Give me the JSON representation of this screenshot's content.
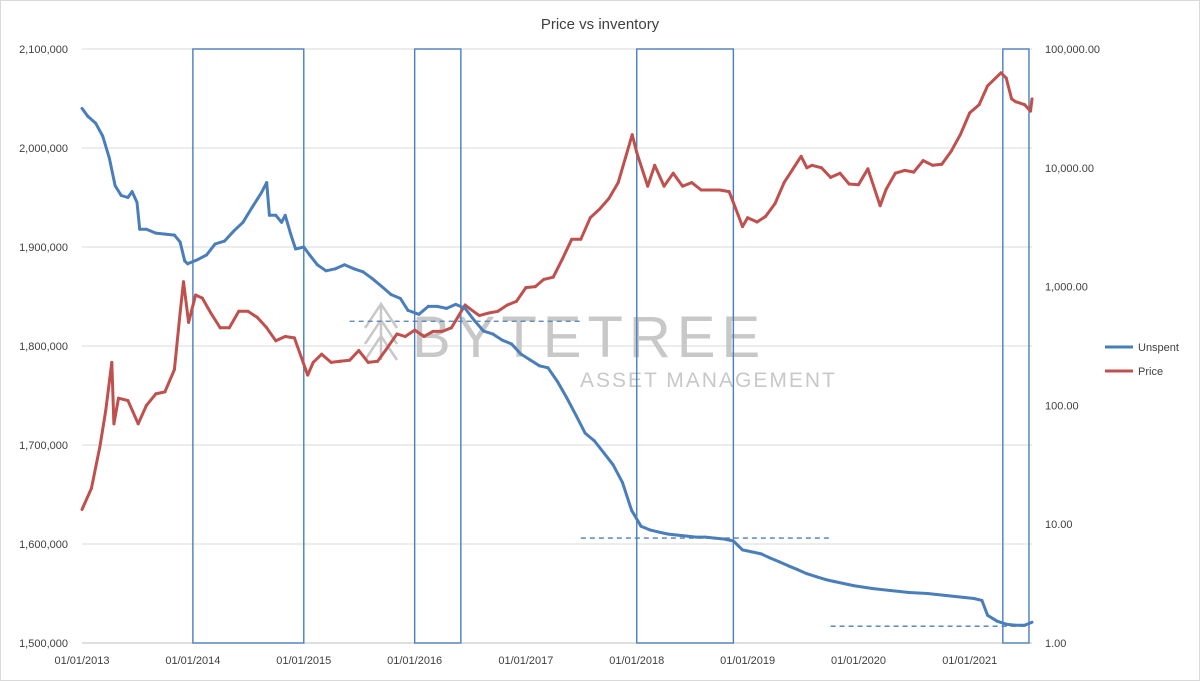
{
  "chart_data": {
    "type": "line",
    "title": "Price vs inventory",
    "watermark": {
      "line1": "BYTETREE",
      "line2": "ASSET MANAGEMENT"
    },
    "grid": true,
    "legend_position": "right",
    "x_axis": {
      "ticks": [
        "01/01/2013",
        "01/01/2014",
        "01/01/2015",
        "01/01/2016",
        "01/01/2017",
        "01/01/2018",
        "01/01/2019",
        "01/01/2020",
        "01/01/2021"
      ],
      "range": [
        "2013-01-01",
        "2021-07-25"
      ]
    },
    "y_left": {
      "ticks": [
        "1,500,000",
        "1,600,000",
        "1,700,000",
        "1,800,000",
        "1,900,000",
        "2,000,000",
        "2,100,000"
      ],
      "range": [
        1500000,
        2100000
      ]
    },
    "y_right": {
      "scale": "log",
      "ticks": [
        "1.00",
        "10.00",
        "100.00",
        "1,000.00",
        "10,000.00",
        "100,000.00"
      ],
      "range": [
        1,
        100000
      ]
    },
    "series": [
      {
        "name": "Unspent",
        "axis": "left",
        "color": "#4a7ebb",
        "points": [
          [
            "2013-01-01",
            2040000
          ],
          [
            "2013-01-20",
            2032000
          ],
          [
            "2013-02-15",
            2025000
          ],
          [
            "2013-03-10",
            2012000
          ],
          [
            "2013-04-01",
            1990000
          ],
          [
            "2013-04-20",
            1962000
          ],
          [
            "2013-05-10",
            1952000
          ],
          [
            "2013-06-01",
            1950000
          ],
          [
            "2013-06-15",
            1956000
          ],
          [
            "2013-07-01",
            1945000
          ],
          [
            "2013-07-10",
            1918000
          ],
          [
            "2013-08-01",
            1918000
          ],
          [
            "2013-09-01",
            1914000
          ],
          [
            "2013-10-01",
            1913000
          ],
          [
            "2013-11-01",
            1912000
          ],
          [
            "2013-11-20",
            1905000
          ],
          [
            "2013-12-05",
            1886000
          ],
          [
            "2013-12-15",
            1883000
          ],
          [
            "2014-01-15",
            1887000
          ],
          [
            "2014-02-15",
            1892000
          ],
          [
            "2014-03-15",
            1903000
          ],
          [
            "2014-04-15",
            1906000
          ],
          [
            "2014-05-15",
            1916000
          ],
          [
            "2014-06-15",
            1925000
          ],
          [
            "2014-07-15",
            1940000
          ],
          [
            "2014-08-15",
            1955000
          ],
          [
            "2014-09-01",
            1965000
          ],
          [
            "2014-09-10",
            1932000
          ],
          [
            "2014-10-01",
            1932000
          ],
          [
            "2014-10-20",
            1925000
          ],
          [
            "2014-11-01",
            1932000
          ],
          [
            "2014-11-20",
            1912000
          ],
          [
            "2014-12-05",
            1898000
          ],
          [
            "2015-01-01",
            1900000
          ],
          [
            "2015-01-20",
            1892000
          ],
          [
            "2015-02-15",
            1882000
          ],
          [
            "2015-03-15",
            1876000
          ],
          [
            "2015-04-15",
            1878000
          ],
          [
            "2015-05-15",
            1882000
          ],
          [
            "2015-06-15",
            1878000
          ],
          [
            "2015-07-15",
            1875000
          ],
          [
            "2015-08-15",
            1868000
          ],
          [
            "2015-09-15",
            1860000
          ],
          [
            "2015-10-15",
            1852000
          ],
          [
            "2015-11-15",
            1848000
          ],
          [
            "2015-12-10",
            1836000
          ],
          [
            "2016-01-15",
            1832000
          ],
          [
            "2016-02-15",
            1840000
          ],
          [
            "2016-03-15",
            1840000
          ],
          [
            "2016-04-15",
            1838000
          ],
          [
            "2016-05-15",
            1842000
          ],
          [
            "2016-06-15",
            1838000
          ],
          [
            "2016-07-15",
            1826000
          ],
          [
            "2016-08-15",
            1815000
          ],
          [
            "2016-09-15",
            1812000
          ],
          [
            "2016-10-15",
            1806000
          ],
          [
            "2016-11-15",
            1802000
          ],
          [
            "2016-12-15",
            1792000
          ],
          [
            "2017-01-15",
            1786000
          ],
          [
            "2017-02-15",
            1780000
          ],
          [
            "2017-03-15",
            1778000
          ],
          [
            "2017-04-15",
            1764000
          ],
          [
            "2017-05-15",
            1748000
          ],
          [
            "2017-06-15",
            1730000
          ],
          [
            "2017-07-15",
            1712000
          ],
          [
            "2017-08-15",
            1704000
          ],
          [
            "2017-09-15",
            1692000
          ],
          [
            "2017-10-15",
            1680000
          ],
          [
            "2017-11-15",
            1662000
          ],
          [
            "2017-12-15",
            1634000
          ],
          [
            "2018-01-15",
            1618000
          ],
          [
            "2018-02-15",
            1614000
          ],
          [
            "2018-03-15",
            1612000
          ],
          [
            "2018-04-15",
            1610000
          ],
          [
            "2018-05-15",
            1609000
          ],
          [
            "2018-06-15",
            1608000
          ],
          [
            "2018-07-15",
            1607000
          ],
          [
            "2018-08-15",
            1607000
          ],
          [
            "2018-09-15",
            1606000
          ],
          [
            "2018-10-15",
            1605000
          ],
          [
            "2018-11-15",
            1603000
          ],
          [
            "2018-12-15",
            1594000
          ],
          [
            "2019-01-15",
            1592000
          ],
          [
            "2019-02-15",
            1590000
          ],
          [
            "2019-03-15",
            1586000
          ],
          [
            "2019-04-15",
            1582000
          ],
          [
            "2019-05-15",
            1578000
          ],
          [
            "2019-06-15",
            1574000
          ],
          [
            "2019-07-15",
            1570000
          ],
          [
            "2019-08-15",
            1567000
          ],
          [
            "2019-09-15",
            1564000
          ],
          [
            "2019-10-15",
            1562000
          ],
          [
            "2019-11-15",
            1560000
          ],
          [
            "2019-12-15",
            1558000
          ],
          [
            "2020-02-15",
            1555000
          ],
          [
            "2020-04-15",
            1553000
          ],
          [
            "2020-06-15",
            1551000
          ],
          [
            "2020-08-15",
            1550000
          ],
          [
            "2020-10-15",
            1548000
          ],
          [
            "2020-12-15",
            1546000
          ],
          [
            "2021-01-15",
            1545000
          ],
          [
            "2021-02-10",
            1543000
          ],
          [
            "2021-03-01",
            1528000
          ],
          [
            "2021-04-01",
            1522000
          ],
          [
            "2021-05-01",
            1519000
          ],
          [
            "2021-06-01",
            1518000
          ],
          [
            "2021-07-01",
            1518000
          ],
          [
            "2021-07-25",
            1521000
          ]
        ]
      },
      {
        "name": "Price",
        "axis": "right",
        "color": "#c0504d",
        "points": [
          [
            "2013-01-01",
            13.3
          ],
          [
            "2013-02-01",
            20
          ],
          [
            "2013-03-01",
            45
          ],
          [
            "2013-03-20",
            90
          ],
          [
            "2013-04-09",
            230
          ],
          [
            "2013-04-16",
            70
          ],
          [
            "2013-05-01",
            115
          ],
          [
            "2013-06-01",
            110
          ],
          [
            "2013-07-05",
            70
          ],
          [
            "2013-08-01",
            100
          ],
          [
            "2013-09-01",
            125
          ],
          [
            "2013-10-01",
            130
          ],
          [
            "2013-11-01",
            200
          ],
          [
            "2013-11-20",
            600
          ],
          [
            "2013-12-01",
            1100
          ],
          [
            "2013-12-18",
            500
          ],
          [
            "2014-01-10",
            850
          ],
          [
            "2014-02-01",
            800
          ],
          [
            "2014-03-01",
            600
          ],
          [
            "2014-04-01",
            450
          ],
          [
            "2014-05-01",
            450
          ],
          [
            "2014-06-01",
            620
          ],
          [
            "2014-07-01",
            620
          ],
          [
            "2014-08-01",
            550
          ],
          [
            "2014-09-01",
            450
          ],
          [
            "2014-10-01",
            350
          ],
          [
            "2014-11-01",
            380
          ],
          [
            "2014-12-01",
            370
          ],
          [
            "2015-01-14",
            180
          ],
          [
            "2015-02-01",
            230
          ],
          [
            "2015-03-01",
            270
          ],
          [
            "2015-04-01",
            230
          ],
          [
            "2015-05-01",
            235
          ],
          [
            "2015-06-01",
            240
          ],
          [
            "2015-07-01",
            290
          ],
          [
            "2015-08-01",
            230
          ],
          [
            "2015-09-01",
            235
          ],
          [
            "2015-10-01",
            300
          ],
          [
            "2015-11-04",
            400
          ],
          [
            "2015-12-01",
            380
          ],
          [
            "2016-01-01",
            430
          ],
          [
            "2016-02-01",
            380
          ],
          [
            "2016-03-01",
            420
          ],
          [
            "2016-04-01",
            420
          ],
          [
            "2016-05-01",
            450
          ],
          [
            "2016-06-15",
            700
          ],
          [
            "2016-07-01",
            650
          ],
          [
            "2016-08-01",
            570
          ],
          [
            "2016-09-01",
            600
          ],
          [
            "2016-10-01",
            620
          ],
          [
            "2016-11-01",
            700
          ],
          [
            "2016-12-01",
            750
          ],
          [
            "2017-01-01",
            980
          ],
          [
            "2017-02-01",
            1000
          ],
          [
            "2017-03-01",
            1150
          ],
          [
            "2017-04-01",
            1200
          ],
          [
            "2017-05-01",
            1700
          ],
          [
            "2017-06-01",
            2500
          ],
          [
            "2017-07-01",
            2500
          ],
          [
            "2017-08-01",
            3800
          ],
          [
            "2017-09-01",
            4500
          ],
          [
            "2017-10-01",
            5500
          ],
          [
            "2017-11-01",
            7500
          ],
          [
            "2017-12-17",
            19000
          ],
          [
            "2018-01-01",
            13500
          ],
          [
            "2018-02-06",
            7000
          ],
          [
            "2018-03-01",
            10500
          ],
          [
            "2018-04-01",
            7000
          ],
          [
            "2018-05-01",
            9000
          ],
          [
            "2018-06-01",
            7000
          ],
          [
            "2018-07-01",
            7500
          ],
          [
            "2018-08-01",
            6500
          ],
          [
            "2018-09-01",
            6500
          ],
          [
            "2018-10-01",
            6500
          ],
          [
            "2018-11-01",
            6300
          ],
          [
            "2018-12-01",
            4000
          ],
          [
            "2018-12-15",
            3200
          ],
          [
            "2019-01-01",
            3800
          ],
          [
            "2019-02-01",
            3500
          ],
          [
            "2019-03-01",
            3900
          ],
          [
            "2019-04-01",
            5000
          ],
          [
            "2019-05-01",
            7500
          ],
          [
            "2019-06-26",
            12500
          ],
          [
            "2019-07-15",
            10000
          ],
          [
            "2019-08-01",
            10500
          ],
          [
            "2019-09-01",
            10000
          ],
          [
            "2019-10-01",
            8300
          ],
          [
            "2019-11-01",
            9000
          ],
          [
            "2019-12-01",
            7300
          ],
          [
            "2020-01-01",
            7200
          ],
          [
            "2020-02-01",
            9800
          ],
          [
            "2020-03-12",
            4800
          ],
          [
            "2020-04-01",
            6600
          ],
          [
            "2020-05-01",
            9000
          ],
          [
            "2020-06-01",
            9500
          ],
          [
            "2020-07-01",
            9200
          ],
          [
            "2020-08-01",
            11500
          ],
          [
            "2020-09-01",
            10500
          ],
          [
            "2020-10-01",
            10700
          ],
          [
            "2020-11-01",
            13800
          ],
          [
            "2020-12-01",
            19000
          ],
          [
            "2021-01-01",
            29000
          ],
          [
            "2021-02-01",
            34000
          ],
          [
            "2021-03-01",
            49000
          ],
          [
            "2021-04-14",
            63000
          ],
          [
            "2021-05-01",
            57000
          ],
          [
            "2021-05-19",
            38000
          ],
          [
            "2021-06-01",
            36000
          ],
          [
            "2021-07-01",
            34000
          ],
          [
            "2021-07-20",
            30000
          ],
          [
            "2021-07-25",
            38000
          ]
        ]
      }
    ],
    "highlight_boxes": [
      {
        "start": "2014-01-01",
        "end": "2015-01-01"
      },
      {
        "start": "2016-01-01",
        "end": "2016-06-01"
      },
      {
        "start": "2018-01-01",
        "end": "2018-11-15"
      },
      {
        "start": "2021-04-20",
        "end": "2021-07-15"
      }
    ],
    "support_lines": [
      {
        "start": "2015-06-01",
        "end": "2017-07-01",
        "value": 1825000
      },
      {
        "start": "2017-07-01",
        "end": "2019-10-01",
        "value": 1606000
      },
      {
        "start": "2019-10-01",
        "end": "2021-07-01",
        "value": 1517000
      }
    ]
  }
}
